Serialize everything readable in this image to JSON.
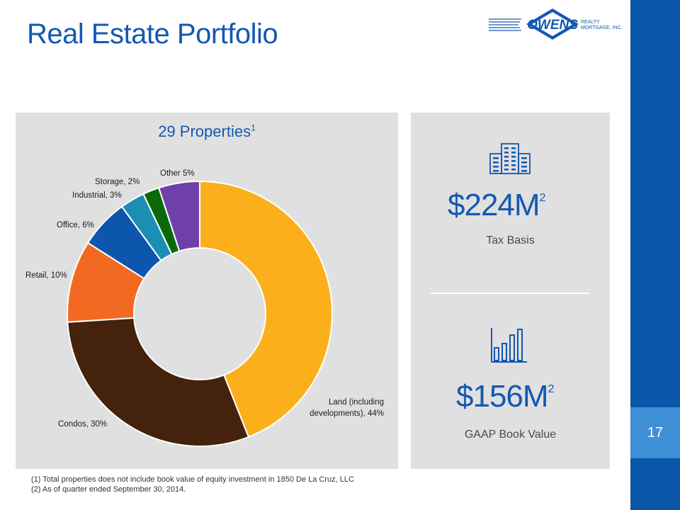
{
  "page": {
    "title": "Real Estate Portfolio",
    "page_number": "17"
  },
  "logo": {
    "name": "OWENS",
    "suffix_line1": "REALTY",
    "suffix_line2": "MORTGAGE, INC."
  },
  "chart_data": {
    "type": "pie",
    "donut": true,
    "title": "29 Properties",
    "title_superscript": "1",
    "categories": [
      "Land (including developments)",
      "Condos",
      "Retail",
      "Office",
      "Industrial",
      "Storage",
      "Other"
    ],
    "values": [
      44,
      30,
      10,
      6,
      3,
      2,
      5
    ],
    "labels": [
      "Land (including\ndevelopments),  44%",
      "Condos,  30%",
      "Retail, 10%",
      "Office,  6%",
      "Industrial, 3%",
      "Storage, 2%",
      "Other 5%"
    ],
    "colors": [
      "#fbb01b",
      "#45220c",
      "#f26a22",
      "#0d56ad",
      "#1b8fb3",
      "#0a6a0a",
      "#7040aa"
    ],
    "legend": "none"
  },
  "stats": [
    {
      "value": "$224M",
      "superscript": "2",
      "label": "Tax Basis",
      "icon": "building-icon"
    },
    {
      "value": "$156M",
      "superscript": "2",
      "label": "GAAP Book Value",
      "icon": "bar-chart-icon"
    }
  ],
  "footnotes": [
    "(1) Total properties does not include book value of equity investment in 1850 De La Cruz, LLC",
    "(2) As of quarter ended September 30, 2014."
  ]
}
